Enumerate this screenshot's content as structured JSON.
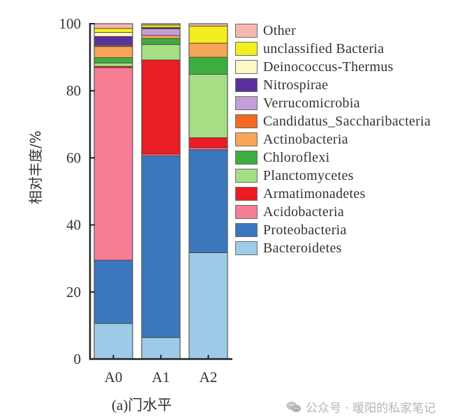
{
  "chart_data": {
    "type": "bar",
    "stacked": true,
    "title": "",
    "xlabel": "(a)门水平",
    "ylabel": "相对丰度/%",
    "ylim": [
      0,
      100
    ],
    "yticks": [
      0,
      20,
      40,
      60,
      80,
      100
    ],
    "categories": [
      "A0",
      "A1",
      "A2"
    ],
    "legend_position": "right",
    "grid": false,
    "series": [
      {
        "name": "Bacteroidetes",
        "color": "#9dcbe7",
        "values": [
          10.6,
          6.4,
          31.7
        ]
      },
      {
        "name": "Proteobacteria",
        "color": "#3a77bc",
        "values": [
          18.9,
          54.2,
          30.7
        ]
      },
      {
        "name": "Acidobacteria",
        "color": "#f57d96",
        "values": [
          57.4,
          0.5,
          0.6
        ]
      },
      {
        "name": "Armatimonadetes",
        "color": "#ea1c24",
        "values": [
          0.4,
          28.1,
          3.0
        ]
      },
      {
        "name": "Planctomycetes",
        "color": "#a6de86",
        "values": [
          1.0,
          4.6,
          18.9
        ]
      },
      {
        "name": "Chloroflexi",
        "color": "#3cae3f",
        "values": [
          1.6,
          1.8,
          5.1
        ]
      },
      {
        "name": "Actinobacteria",
        "color": "#f8a55a",
        "values": [
          3.3,
          0.9,
          4.2
        ]
      },
      {
        "name": "Candidatus_Saccharibacteria",
        "color": "#f2691f",
        "values": [
          0.2,
          0.0,
          0.0
        ]
      },
      {
        "name": "Verrucomicrobia",
        "color": "#c29fdb",
        "values": [
          0.3,
          2.0,
          0.0
        ]
      },
      {
        "name": "Nitrospirae",
        "color": "#5b2f9e",
        "values": [
          2.5,
          0.2,
          0.0
        ]
      },
      {
        "name": "Deinococcus-Thermus",
        "color": "#fcf8c8",
        "values": [
          1.2,
          0.2,
          0.0
        ]
      },
      {
        "name": "unclassified Bacteria",
        "color": "#f3ee1e",
        "values": [
          1.2,
          0.7,
          5.1
        ]
      },
      {
        "name": "Other",
        "color": "#f6b7ae",
        "values": [
          1.4,
          0.4,
          0.7
        ]
      }
    ]
  },
  "legend": {
    "items": [
      {
        "label": "Other",
        "color": "#f6b7ae"
      },
      {
        "label": "unclassified Bacteria",
        "color": "#f3ee1e"
      },
      {
        "label": "Deinococcus-Thermus",
        "color": "#fcf8c8"
      },
      {
        "label": "Nitrospirae",
        "color": "#5b2f9e"
      },
      {
        "label": "Verrucomicrobia",
        "color": "#c29fdb"
      },
      {
        "label": "Candidatus_Saccharibacteria",
        "color": "#f2691f"
      },
      {
        "label": "Actinobacteria",
        "color": "#f8a55a"
      },
      {
        "label": "Chloroflexi",
        "color": "#3cae3f"
      },
      {
        "label": "Planctomycetes",
        "color": "#a6de86"
      },
      {
        "label": "Armatimonadetes",
        "color": "#ea1c24"
      },
      {
        "label": "Acidobacteria",
        "color": "#f57d96"
      },
      {
        "label": "Proteobacteria",
        "color": "#3a77bc"
      },
      {
        "label": "Bacteroidetes",
        "color": "#9dcbe7"
      }
    ]
  },
  "axis": {
    "ylabel": "相对丰度/%",
    "xtitle": "(a)门水平"
  },
  "watermark": {
    "text": "公众号 · 暖阳的私家笔记",
    "icon": "wechat-icon"
  }
}
